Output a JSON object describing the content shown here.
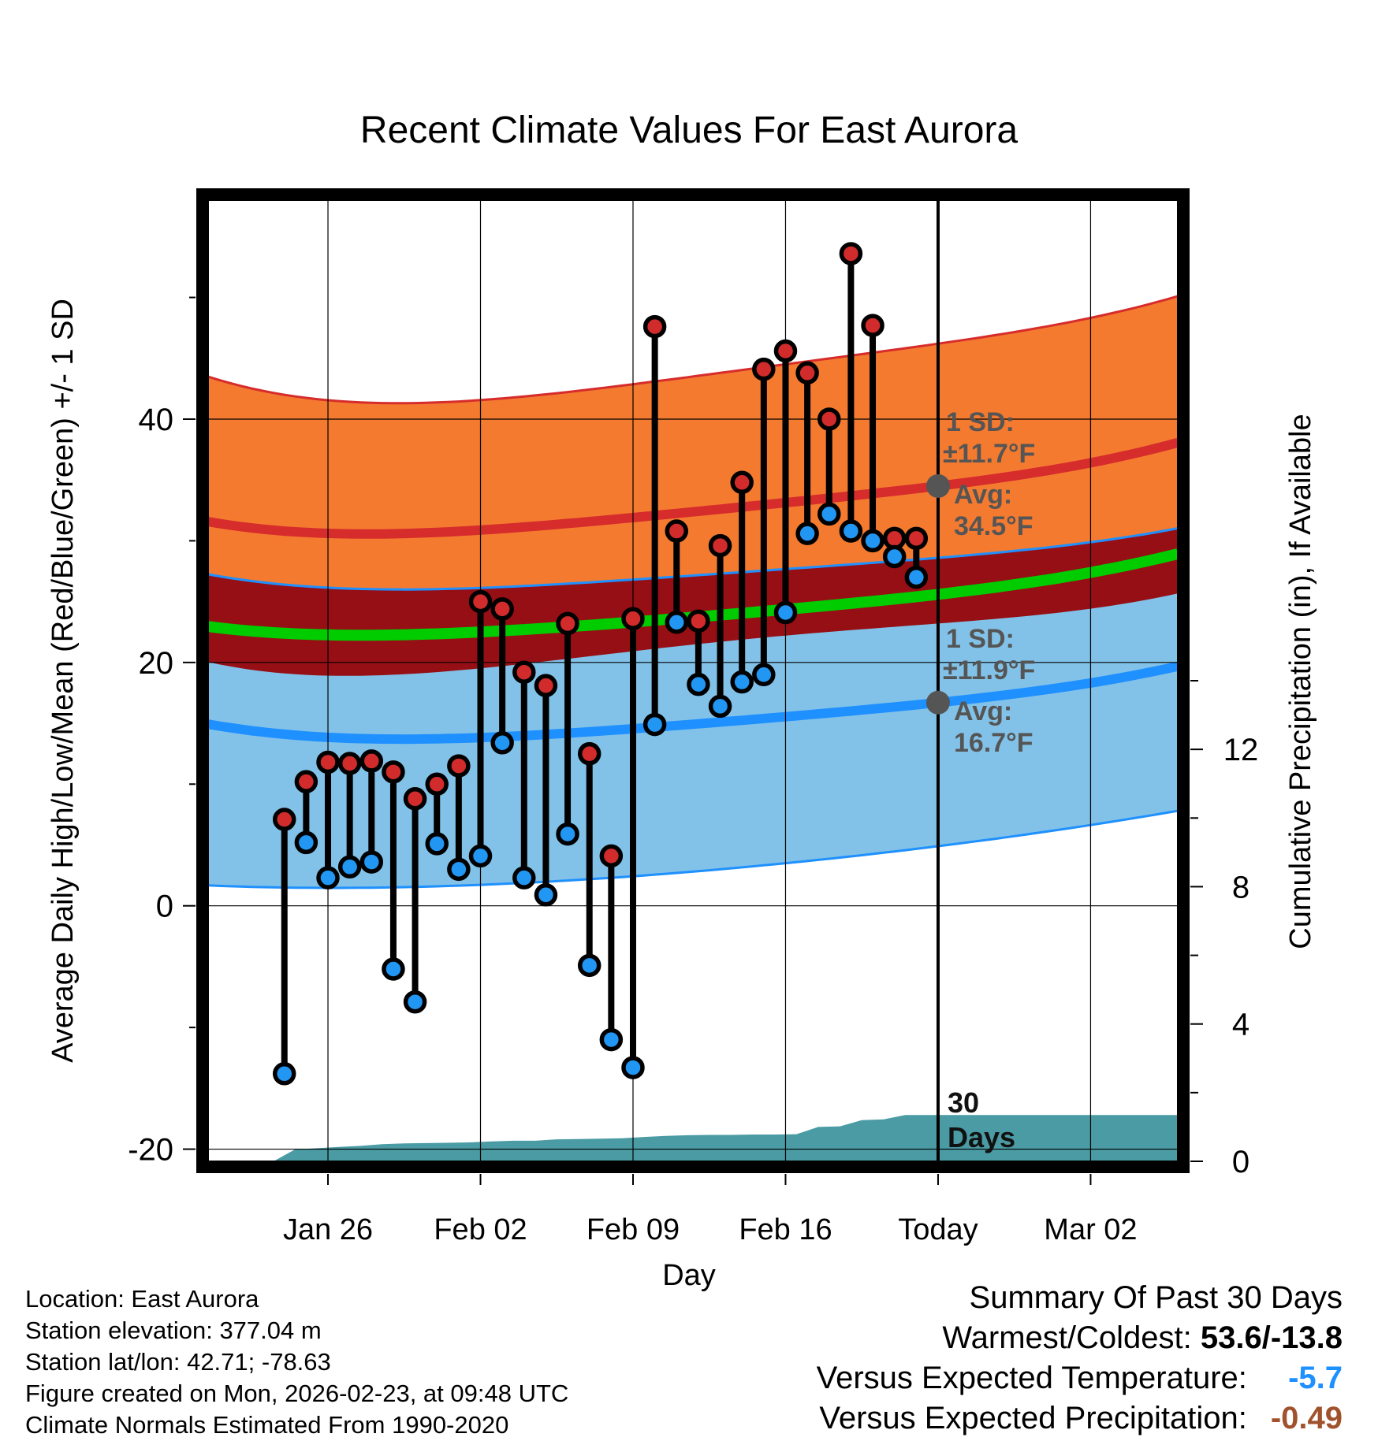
{
  "chart_data": {
    "type": "line",
    "title": "Recent Climate Values For East Aurora",
    "xlabel": "Day",
    "ylabel": "Average Daily High/Low/Mean (Red/Blue/Green) +/- 1 SD",
    "y2label": "Cumulative Precipitation (in), If Available",
    "xlim_days": [
      -33.5,
      11
    ],
    "ylim": [
      -21,
      58
    ],
    "y2lim": [
      0,
      28
    ],
    "yticks": [
      -20,
      0,
      20,
      40
    ],
    "y2ticks": [
      0,
      4,
      8,
      12
    ],
    "xticks": [
      {
        "day": -28,
        "label": "Jan 26"
      },
      {
        "day": -21,
        "label": "Feb 02"
      },
      {
        "day": -14,
        "label": "Feb 09"
      },
      {
        "day": -7,
        "label": "Feb 16"
      },
      {
        "day": 0,
        "label": "Today"
      },
      {
        "day": 7,
        "label": "Mar 02"
      }
    ],
    "today_label": "Today",
    "window_label_line1": "30",
    "window_label_line2": "Days",
    "normals": {
      "days": [
        -30,
        -20,
        -10,
        0,
        10
      ],
      "high_avg": [
        30.8,
        31.0,
        32.6,
        34.5,
        37.6
      ],
      "high_sd_upper": [
        42.0,
        41.7,
        43.8,
        46.2,
        49.6
      ],
      "high_sd_lower": [
        19.1,
        19.7,
        21.7,
        23.2,
        25.3
      ],
      "low_avg": [
        14.1,
        13.9,
        15.1,
        16.7,
        19.3
      ],
      "low_sd_upper": [
        26.4,
        26.2,
        27.3,
        28.6,
        30.7
      ],
      "low_sd_lower": [
        1.5,
        1.8,
        3.0,
        4.9,
        7.5
      ],
      "mean_avg": [
        22.4,
        22.6,
        23.9,
        25.6,
        28.5
      ],
      "high_sd_text": "1 SD:",
      "high_sd_value": "±11.7°F",
      "high_avg_text": "Avg:",
      "high_avg_value": "34.5°F",
      "high_today_avg": 34.5,
      "low_sd_text": "1 SD:",
      "low_sd_value": "±11.9°F",
      "low_avg_text": "Avg:",
      "low_avg_value": "16.7°F",
      "low_today_avg": 16.7
    },
    "observed": {
      "days": [
        -30,
        -29,
        -28,
        -27,
        -26,
        -25,
        -24,
        -23,
        -22,
        -21,
        -20,
        -19,
        -18,
        -17,
        -16,
        -15,
        -14,
        -13,
        -12,
        -11,
        -10,
        -9,
        -8,
        -7,
        -6,
        -5,
        -4,
        -3,
        -2,
        -1
      ],
      "highs": [
        7.1,
        10.2,
        11.8,
        11.7,
        11.9,
        11.0,
        8.8,
        10.0,
        11.5,
        25.0,
        24.4,
        19.2,
        18.1,
        23.2,
        12.5,
        4.1,
        23.6,
        47.6,
        30.8,
        23.4,
        29.6,
        34.8,
        44.1,
        45.6,
        43.8,
        40.0,
        53.6,
        47.7,
        30.2,
        30.2
      ],
      "lows": [
        -13.8,
        5.2,
        2.3,
        3.2,
        3.6,
        -5.2,
        -7.9,
        5.1,
        3.0,
        4.1,
        13.4,
        2.3,
        0.9,
        5.9,
        -4.9,
        -11.0,
        -13.3,
        14.9,
        23.3,
        18.2,
        16.4,
        18.4,
        19.0,
        24.1,
        30.6,
        32.2,
        30.8,
        30.0,
        28.7,
        27.0
      ]
    },
    "precipitation": {
      "days": [
        -30.5,
        -29.5,
        -28.5,
        -27.5,
        -26.5,
        -25.5,
        -24.5,
        -23.5,
        -22.5,
        -21.5,
        -20.5,
        -19.5,
        -18.5,
        -17.5,
        -16.5,
        -15.5,
        -14.5,
        -13.5,
        -12.5,
        -11.5,
        -10.5,
        -9.5,
        -8.5,
        -7.5,
        -6.5,
        -5.5,
        -4.5,
        -3.5,
        -2.5,
        -1.5,
        -0.5,
        11
      ],
      "cumulative": [
        0,
        0.35,
        0.38,
        0.42,
        0.45,
        0.5,
        0.52,
        0.53,
        0.54,
        0.55,
        0.58,
        0.6,
        0.6,
        0.64,
        0.65,
        0.66,
        0.67,
        0.71,
        0.74,
        0.76,
        0.77,
        0.77,
        0.78,
        0.78,
        0.79,
        1.0,
        1.02,
        1.2,
        1.22,
        1.35,
        1.35,
        1.35
      ]
    },
    "colors": {
      "high_band": "#f47a30",
      "high_line": "#d62c2c",
      "overlap_band": "#960f15",
      "mean_line": "#00cc00",
      "low_band": "#82c2e8",
      "low_line": "#1e90ff",
      "precip": "#4a9ba3",
      "high_marker": "#d12b2b",
      "low_marker": "#2196f3",
      "annotation": "#555555"
    }
  },
  "info": {
    "location": "Location: East Aurora",
    "elevation": "Station elevation: 377.04 m",
    "latlon": "Station lat/lon: 42.71; -78.63",
    "created": "Figure created on Mon, 2026-02-23, at 09:48 UTC",
    "normals": "Climate Normals Estimated From 1990-2020"
  },
  "summary": {
    "heading": "Summary Of Past 30 Days",
    "warm_cold_label": "Warmest/Coldest:",
    "warm_cold_value": "53.6/-13.8",
    "temp_label": "Versus Expected Temperature:",
    "temp_value": "-5.7",
    "temp_color": "#1e90ff",
    "precip_label": "Versus Expected Precipitation:",
    "precip_value": "-0.49",
    "precip_color": "#a0522d"
  }
}
